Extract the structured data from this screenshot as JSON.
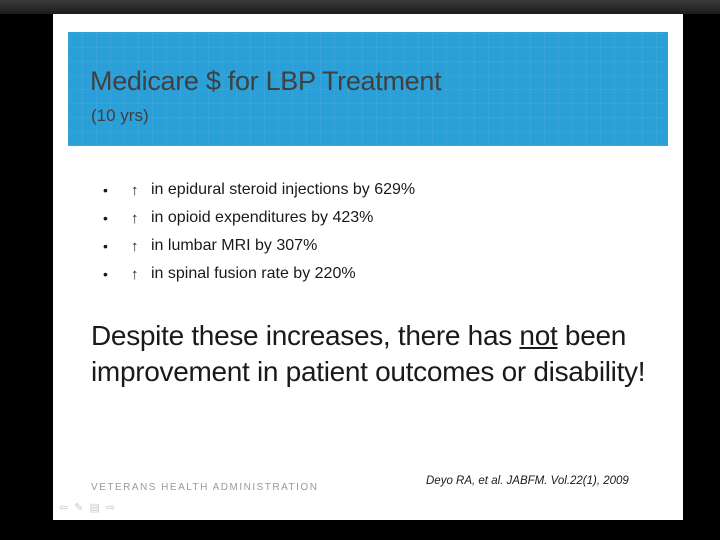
{
  "slide": {
    "title": "Medicare $ for LBP Treatment",
    "subtitle": "(10 yrs)",
    "bullets": [
      {
        "arrow": "↑",
        "text": "in epidural steroid injections by 629%"
      },
      {
        "arrow": "↑",
        "text": "in opioid expenditures by 423%"
      },
      {
        "arrow": "↑",
        "text": "in lumbar MRI by 307%"
      },
      {
        "arrow": "↑",
        "text": "in spinal fusion rate by 220%"
      }
    ],
    "statement": {
      "part1": "Despite these increases, there has ",
      "emphasis": "not",
      "part2": " been improvement in patient outcomes or disability!"
    },
    "footer_org": "VETERANS HEALTH ADMINISTRATION",
    "citation": "Deyo RA, et al. JABFM. Vol.22(1), 2009"
  },
  "colors": {
    "title_band": "#2a9fd8",
    "background": "#000000"
  },
  "nav_icons": [
    "back-icon",
    "pen-icon",
    "menu-icon",
    "forward-icon"
  ]
}
